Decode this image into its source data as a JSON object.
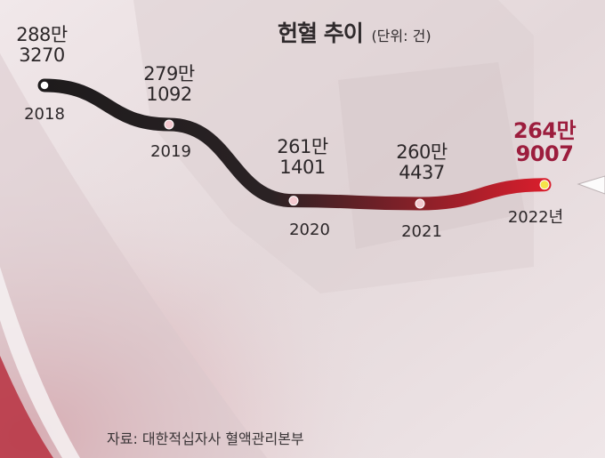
{
  "title": "헌혈 추이",
  "unit": "(단위: 건)",
  "source": "자료: 대한적십자사 혈액관리본부",
  "colors": {
    "line_start": "#1e1b1c",
    "line_end": "#d81e2c",
    "highlight": "#9c1d3d",
    "point_last": "#f5e24a"
  },
  "chart_data": {
    "type": "line",
    "title": "헌혈 추이",
    "unit_label": "(단위: 건)",
    "categories": [
      "2018",
      "2019",
      "2020",
      "2021",
      "2022년"
    ],
    "values": [
      2883270,
      2791092,
      2611401,
      2604437,
      2649007
    ],
    "value_labels": [
      [
        "288만",
        "3270"
      ],
      [
        "279만",
        "1092"
      ],
      [
        "261만",
        "1401"
      ],
      [
        "260만",
        "4437"
      ],
      [
        "264만",
        "9007"
      ]
    ],
    "highlight_index": 4,
    "grid": false,
    "legend": "none"
  }
}
